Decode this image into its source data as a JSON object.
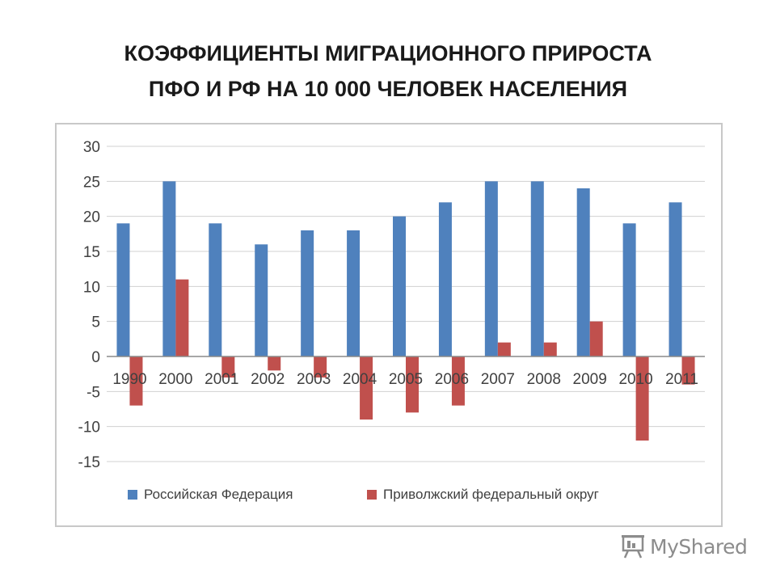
{
  "title": {
    "line1": "КОЭФФИЦИЕНТЫ МИГРАЦИОННОГО ПРИРОСТА",
    "line2": "ПФО И РФ НА 10 000 ЧЕЛОВЕК НАСЕЛЕНИЯ"
  },
  "watermark": {
    "text": "MyShared",
    "icon": "presentation-board-icon"
  },
  "chart_data": {
    "type": "bar",
    "categories": [
      "1990",
      "2000",
      "2001",
      "2002",
      "2003",
      "2004",
      "2005",
      "2006",
      "2007",
      "2008",
      "2009",
      "2010",
      "2011"
    ],
    "series": [
      {
        "name": "Российская Федерация",
        "color": "#4f81bd",
        "values": [
          19,
          25,
          19,
          16,
          18,
          18,
          20,
          22,
          25,
          25,
          24,
          19,
          22
        ]
      },
      {
        "name": "Приволжский федеральный округ",
        "color": "#c0504d",
        "values": [
          -7,
          11,
          -3,
          -2,
          -3,
          -9,
          -8,
          -7,
          2,
          2,
          5,
          -12,
          -4
        ]
      }
    ],
    "yticks": [
      "30",
      "25",
      "20",
      "15",
      "10",
      "5",
      "0",
      "-5",
      "-10",
      "-15"
    ],
    "ylim": [
      -15,
      30
    ],
    "grid": true,
    "legend_position": "bottom"
  }
}
